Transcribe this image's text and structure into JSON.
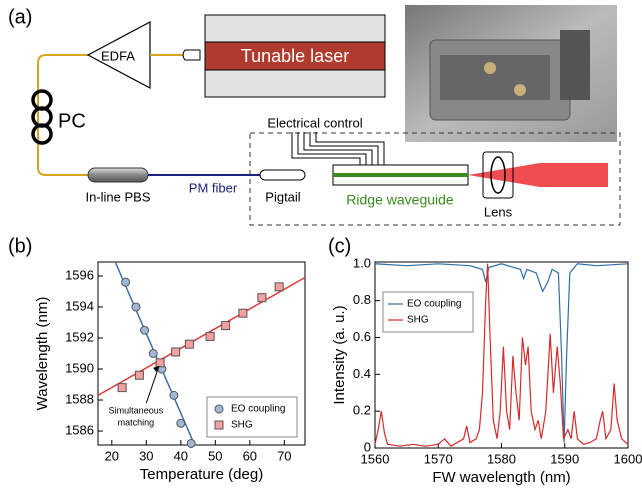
{
  "diagram": {
    "label": "(a)",
    "edfa": "EDFA",
    "laser": "Tunable laser",
    "pc": "PC",
    "electrical": "Electrical control",
    "pbs": "In-line PBS",
    "fiber": "PM fiber",
    "pigtail": "Pigtail",
    "waveguide": "Ridge waveguide",
    "lens": "Lens"
  },
  "chart_data": [
    {
      "type": "scatter",
      "label": "(b)",
      "x_label": "Temperature (deg)",
      "y_label": "Wavelength (nm)",
      "xlim": [
        16,
        76
      ],
      "ylim": [
        1585.1,
        1596.9
      ],
      "xticks": [
        20,
        30,
        40,
        50,
        60,
        70
      ],
      "yticks": [
        1586,
        1588,
        1590,
        1592,
        1594,
        1596
      ],
      "legend": "lower right",
      "annotation": [
        "Simultaneous",
        "matching"
      ],
      "series": [
        {
          "name": "EO coupling",
          "color": "#3b6ea5",
          "fill": "#9fb8d6",
          "marker": "circle",
          "x": [
            24,
            27,
            29.5,
            32,
            34.5,
            38,
            40,
            43
          ],
          "values": [
            1595.6,
            1594,
            1592.5,
            1591,
            1590,
            1588.3,
            1586.5,
            1585.2
          ],
          "fit_x": [
            21,
            44
          ],
          "fit_values": [
            1596.9,
            1585.1
          ]
        },
        {
          "name": "SHG",
          "color": "#d93a3a",
          "fill": "#f4a0a0",
          "marker": "square",
          "x": [
            23,
            28,
            34,
            38.5,
            42.5,
            48.5,
            53,
            58,
            63.5,
            68.5
          ],
          "values": [
            1588.8,
            1589.6,
            1590.4,
            1591.1,
            1591.6,
            1592.1,
            1592.8,
            1593.6,
            1594.6,
            1595.3
          ],
          "fit_x": [
            16,
            76
          ],
          "fit_values": [
            1588.3,
            1595.9
          ]
        }
      ]
    },
    {
      "type": "line",
      "label": "(c)",
      "x_label": "FW wavelength (nm)",
      "y_label": "Intensity (a. u.)",
      "xlim": [
        1560,
        1600
      ],
      "ylim": [
        0,
        1.01
      ],
      "xticks": [
        1560,
        1570,
        1580,
        1590,
        1600
      ],
      "yticks": [
        0,
        {
          "value": 0.2,
          "label": "0.2"
        },
        {
          "value": 0.4,
          "label": "0.4"
        },
        {
          "value": 0.6,
          "label": "0.6"
        },
        {
          "value": 0.8,
          "label": "0.8"
        },
        {
          "value": 1,
          "label": "1.0"
        }
      ],
      "legend": "upper left",
      "series": [
        {
          "name": "EO coupling",
          "color": "#2f6fa8",
          "x": [
            1560,
            1565,
            1570,
            1575,
            1577,
            1577.5,
            1578,
            1580,
            1583,
            1583.5,
            1584,
            1585.5,
            1586.5,
            1587.3,
            1588,
            1589,
            1589.5,
            1589.9,
            1590.3,
            1590.8,
            1592,
            1595,
            1600
          ],
          "values": [
            1,
            0.99,
            1,
            0.99,
            0.97,
            0.9,
            0.98,
            1,
            0.97,
            0.92,
            0.97,
            0.95,
            0.85,
            0.9,
            0.97,
            0.95,
            0.5,
            0.03,
            0.5,
            0.95,
            1,
            0.99,
            1
          ]
        },
        {
          "name": "SHG",
          "color": "#d62a2a",
          "x": [
            1560,
            1560.5,
            1561,
            1561.5,
            1562,
            1564,
            1566,
            1568,
            1570,
            1571,
            1572,
            1574,
            1574.5,
            1575,
            1576,
            1576.5,
            1577,
            1577.5,
            1577.8,
            1578.2,
            1578.7,
            1579.3,
            1579.8,
            1580.3,
            1580.8,
            1581.3,
            1581.8,
            1582.3,
            1582.8,
            1583.3,
            1583.8,
            1584.2,
            1584.7,
            1585.3,
            1585.8,
            1586.3,
            1587,
            1587.7,
            1588.2,
            1588.8,
            1589.3,
            1589.8,
            1590.5,
            1591,
            1591.5,
            1592,
            1593,
            1594,
            1595,
            1595.6,
            1596,
            1596.5,
            1597.3,
            1597.8,
            1598.3,
            1599,
            1600
          ],
          "values": [
            0.02,
            0.1,
            0.2,
            0.08,
            0.02,
            0.01,
            0.02,
            0.01,
            0.02,
            0.05,
            0.01,
            0.05,
            0.12,
            0.03,
            0.05,
            0.1,
            0.3,
            0.8,
            1,
            0.6,
            0.15,
            0.05,
            0.2,
            0.55,
            0.2,
            0.1,
            0.5,
            0.3,
            0.15,
            0.6,
            0.45,
            0.55,
            0.2,
            0.1,
            0.15,
            0.05,
            0.2,
            0.62,
            0.3,
            0.55,
            0.35,
            0.05,
            0.1,
            0.05,
            0.2,
            0.05,
            0.02,
            0.03,
            0.05,
            0.15,
            0.2,
            0.05,
            0.1,
            0.35,
            0.15,
            0.05,
            0.02
          ]
        }
      ]
    }
  ]
}
